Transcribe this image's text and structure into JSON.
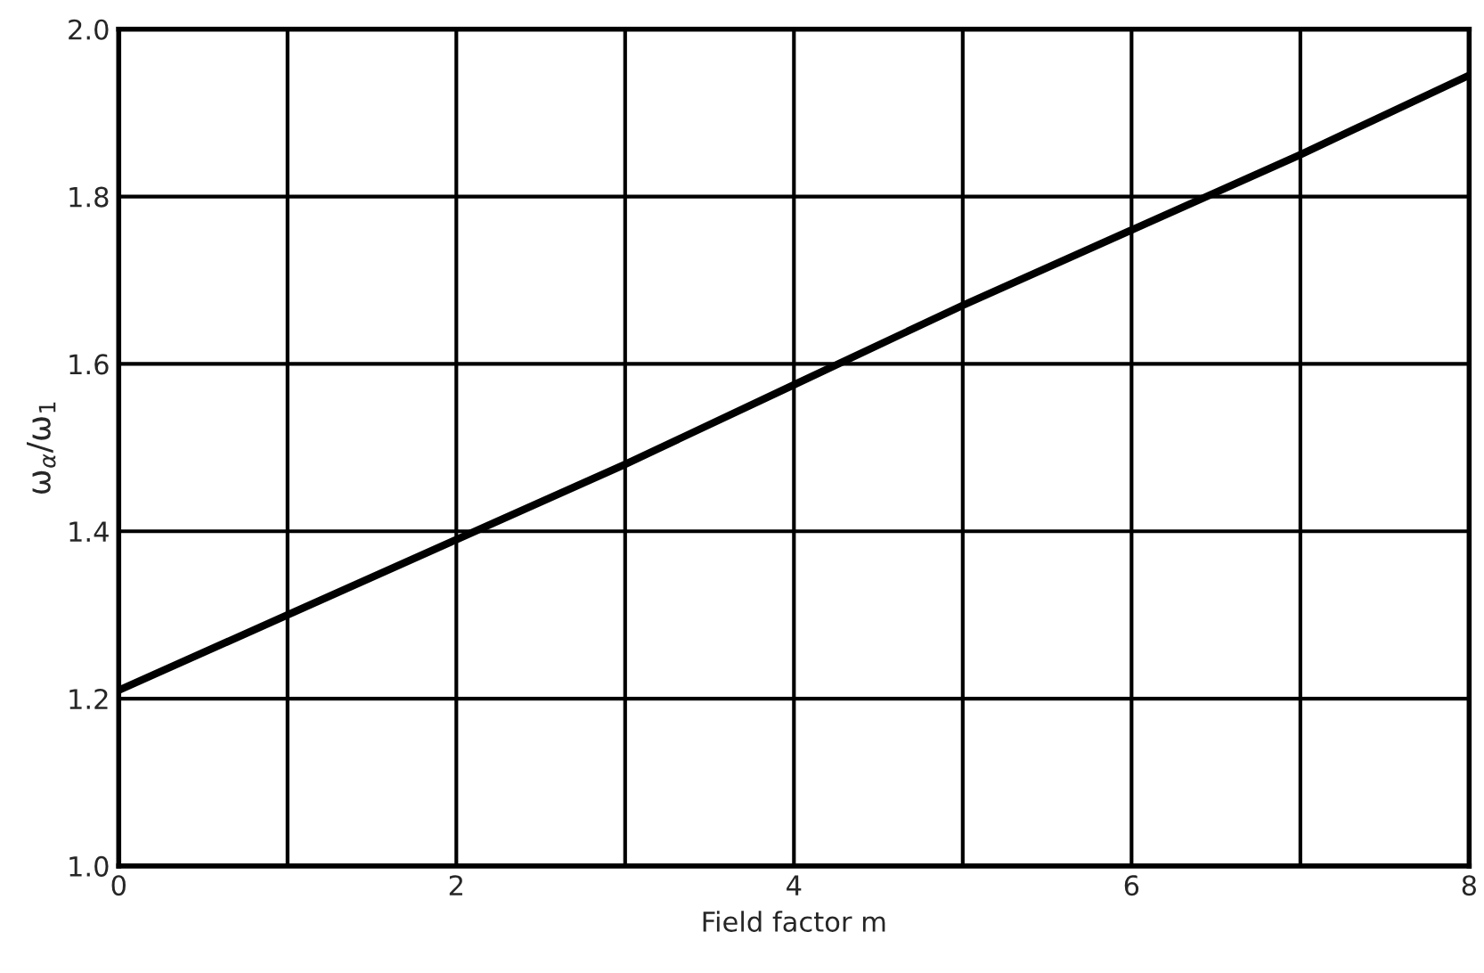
{
  "chart_data": {
    "type": "line",
    "xlabel": "Field factor m",
    "ylabel": "ω$_{α}$/ω$_{1}$",
    "x": [
      0,
      1,
      2,
      3,
      4,
      5,
      6,
      7,
      8
    ],
    "series": [
      {
        "color": "#000000",
        "values": [
          1.21,
          1.3,
          1.39,
          1.48,
          1.575,
          1.67,
          1.76,
          1.85,
          1.945
        ]
      }
    ],
    "xlim": [
      0,
      8
    ],
    "ylim": [
      1.0,
      2.0
    ],
    "xticks": [
      0,
      {
        "value": 1,
        "label": null
      },
      2,
      {
        "value": 3,
        "label": null
      },
      4,
      {
        "value": 5,
        "label": null
      },
      6,
      {
        "value": 7,
        "label": null
      },
      8
    ],
    "yticks": [
      {
        "value": 1.0,
        "label": "1.0"
      },
      1.2,
      1.4,
      1.6,
      1.8,
      {
        "value": 2.0,
        "label": "2.0"
      }
    ],
    "grid": true,
    "marker": "none",
    "line_style": "solid"
  }
}
